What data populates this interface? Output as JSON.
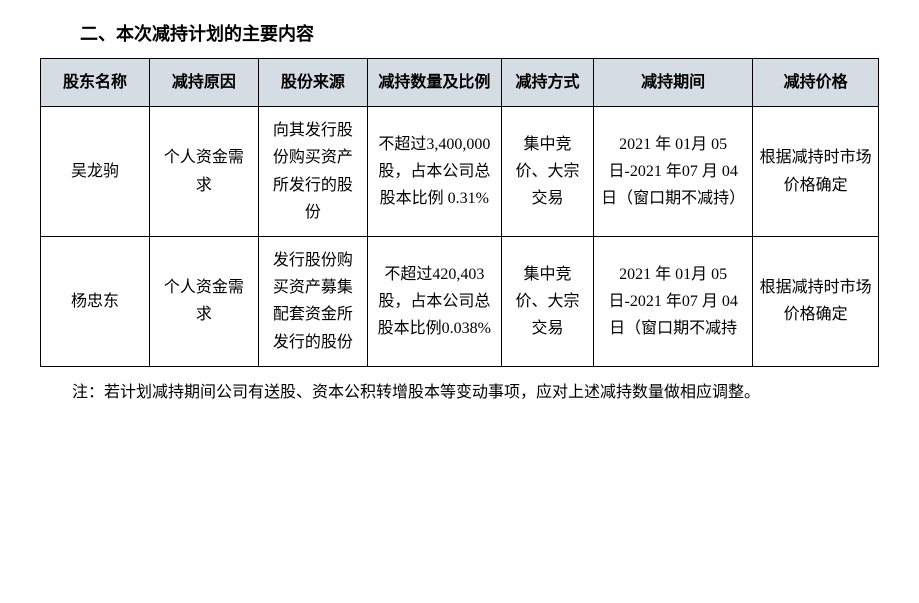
{
  "section_title": "二、本次减持计划的主要内容",
  "table": {
    "header_bg": "#d5dce4",
    "border_color": "#000000",
    "columns": [
      "股东名称",
      "减持原因",
      "股份来源",
      "减持数量及比例",
      "减持方式",
      "减持期间",
      "减持价格"
    ],
    "rows": [
      {
        "name": "吴龙驹",
        "reason": "个人资金需求",
        "source": "向其发行股份购买资产所发行的股份",
        "quantity": "不超过3,400,000股，占本公司总股本比例 0.31%",
        "method": "集中竞价、大宗交易",
        "period": "2021 年 01月 05 日-2021 年07 月 04 日（窗口期不减持）",
        "price": "根据减持时市场价格确定"
      },
      {
        "name": "杨忠东",
        "reason": "个人资金需求",
        "source": "发行股份购买资产募集配套资金所发行的股份",
        "quantity": "不超过420,403 股，占本公司总股本比例0.038%",
        "method": "集中竞价、大宗交易",
        "period": "2021 年 01月 05 日-2021 年07 月 04 日（窗口期不减持",
        "price": "根据减持时市场价格确定"
      }
    ]
  },
  "note": "注：若计划减持期间公司有送股、资本公积转增股本等变动事项，应对上述减持数量做相应调整。"
}
